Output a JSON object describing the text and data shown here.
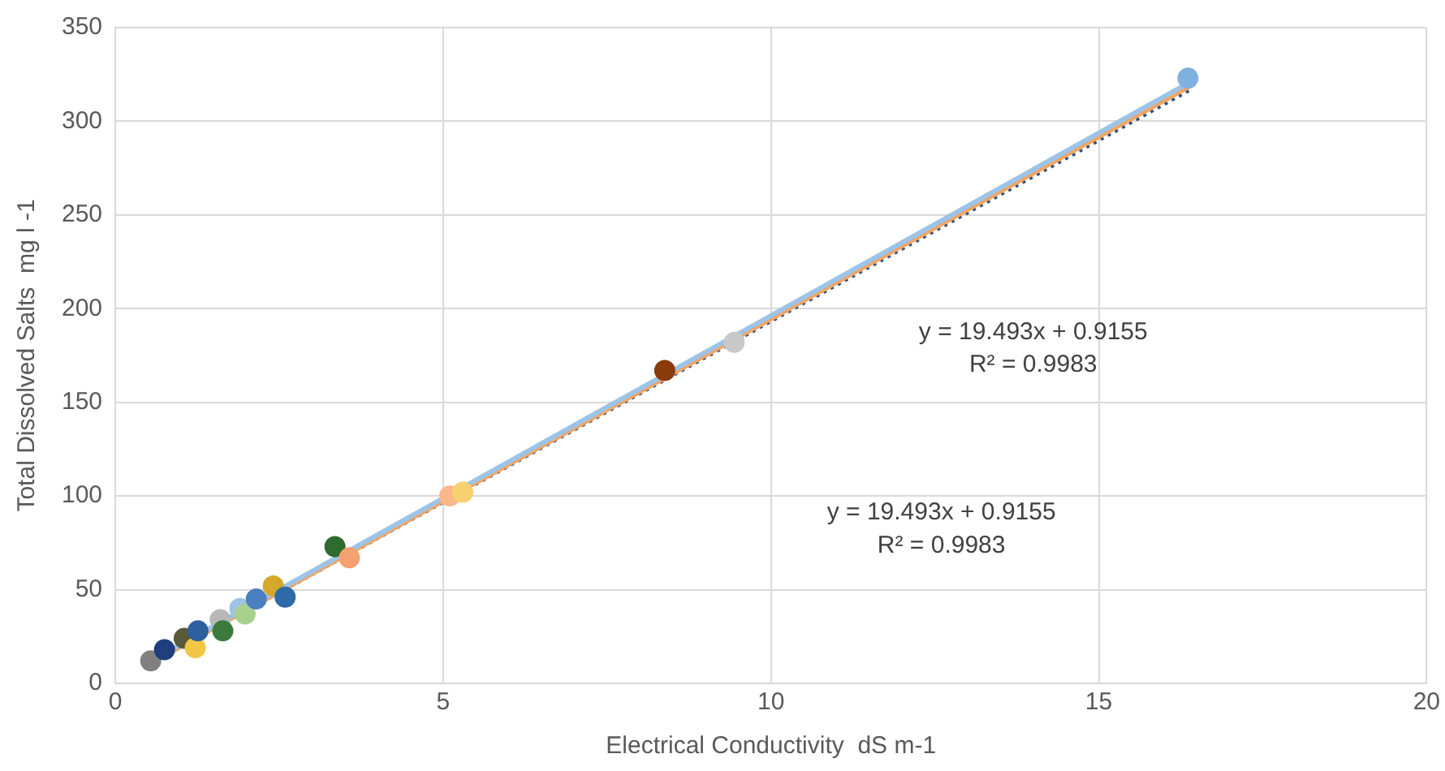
{
  "chart_data": {
    "type": "scatter",
    "xlabel": "Electrical Conductivity  dS m-1",
    "ylabel": "Total Dissolved Salts  mg l -1",
    "xlim": [
      0,
      20
    ],
    "xticks": [
      0,
      5,
      10,
      15,
      20
    ],
    "ylim": [
      0,
      350
    ],
    "yticks": [
      0,
      50,
      100,
      150,
      200,
      250,
      300,
      350
    ],
    "grid": true,
    "legend": false,
    "marker": "circle",
    "series": [
      {
        "type": "line",
        "marker": "none",
        "color": "#9dc3e6",
        "line_style": "solid",
        "x": [
          0.5,
          16.4
        ],
        "values": [
          11,
          321
        ]
      },
      {
        "type": "line",
        "marker": "none",
        "color": "#f4a460",
        "line_style": "solid",
        "x": [
          0.5,
          16.4
        ],
        "values": [
          10,
          319
        ]
      },
      {
        "type": "line",
        "marker": "none",
        "color": "#2f4f7f",
        "line_style": "dotted",
        "x": [
          0.5,
          16.4
        ],
        "values": [
          10,
          317
        ]
      },
      {
        "x": [
          0.54,
          0.75,
          1.05,
          1.22,
          1.26,
          1.6,
          1.64,
          1.9,
          1.98,
          2.15,
          2.41,
          2.59,
          3.35,
          3.57,
          5.1,
          5.3,
          8.38,
          9.44,
          16.36
        ],
        "values": [
          12,
          18,
          24,
          19,
          28,
          34,
          28,
          40,
          37,
          45,
          52,
          46,
          73,
          67,
          100,
          102,
          167,
          182,
          323
        ],
        "colors": [
          "#808080",
          "#1f3f7f",
          "#5a5a3a",
          "#f2c744",
          "#2e5f9e",
          "#b8b8b8",
          "#3b7a3b",
          "#9dc3e6",
          "#a9d18e",
          "#4a7fc0",
          "#d4a82a",
          "#2e6aa8",
          "#2e6b2e",
          "#f4a070",
          "#f8b88a",
          "#f8d070",
          "#8b3a0a",
          "#c8c8c8",
          "#7fb0e0"
        ]
      }
    ],
    "annotations": [
      "y = 19.493x + 0.9155",
      "R² = 0.9983",
      "y = 19.493x + 0.9155",
      "R² = 0.9983"
    ]
  }
}
